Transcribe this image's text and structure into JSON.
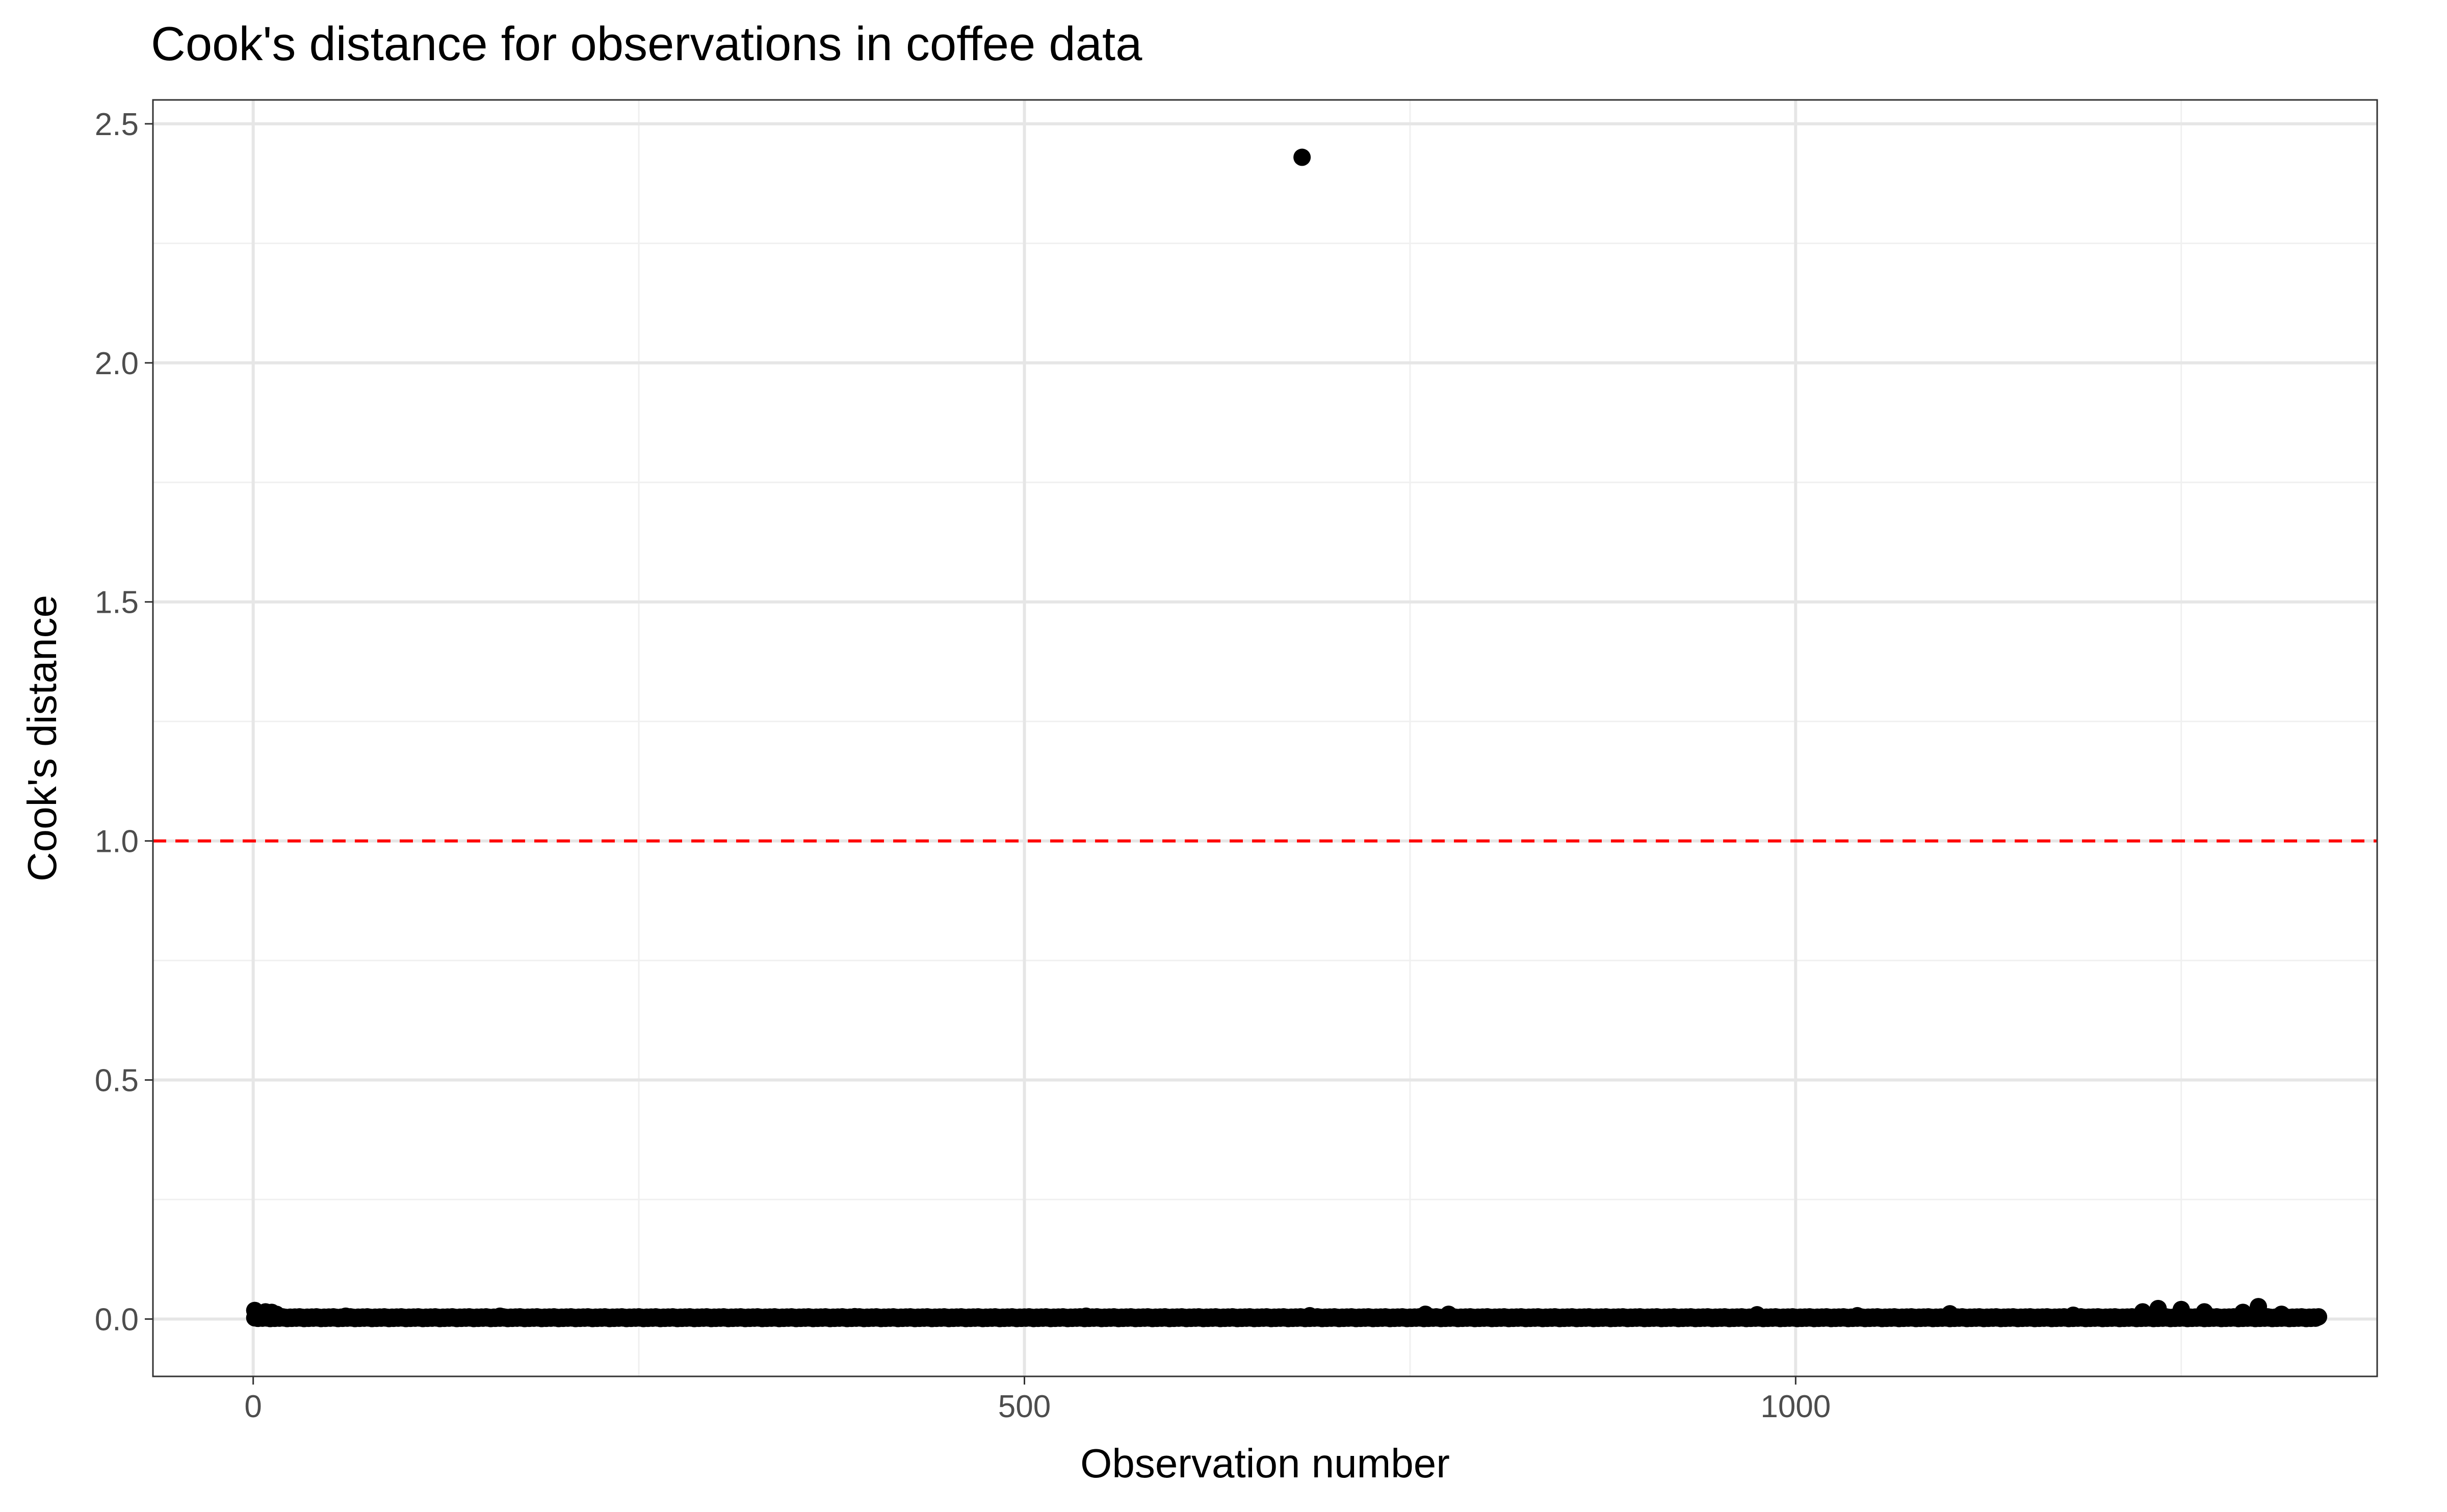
{
  "chart_data": {
    "type": "scatter",
    "title": "Cook's distance for observations in coffee data",
    "xlabel": "Observation number",
    "ylabel": "Cook's distance",
    "xlim": [
      -65,
      1377
    ],
    "ylim": [
      -0.12,
      2.55
    ],
    "x_ticks": [
      0,
      500,
      1000
    ],
    "x_tick_labels": [
      "0",
      "500",
      "1000"
    ],
    "y_ticks": [
      0.0,
      0.5,
      1.0,
      1.5,
      2.0,
      2.5
    ],
    "y_tick_labels": [
      "0.0",
      "0.5",
      "1.0",
      "1.5",
      "2.0",
      "2.5"
    ],
    "x_minor_ticks": [
      250,
      750,
      1250
    ],
    "y_minor_ticks": [
      0.25,
      0.75,
      1.25,
      1.75,
      2.25
    ],
    "grid": true,
    "reference_line": {
      "y": 1.0,
      "style": "dashed",
      "color": "#ff0000"
    },
    "point_color": "#000000",
    "n_observations": 1339,
    "outlier": {
      "x": 680,
      "y": 2.43
    },
    "notable_points": [
      {
        "x": 1,
        "y": 0.018
      },
      {
        "x": 3,
        "y": 0.012
      },
      {
        "x": 8,
        "y": 0.015
      },
      {
        "x": 12,
        "y": 0.014
      },
      {
        "x": 15,
        "y": 0.01
      },
      {
        "x": 60,
        "y": 0.006
      },
      {
        "x": 160,
        "y": 0.006
      },
      {
        "x": 390,
        "y": 0.005
      },
      {
        "x": 540,
        "y": 0.006
      },
      {
        "x": 685,
        "y": 0.007
      },
      {
        "x": 760,
        "y": 0.01
      },
      {
        "x": 775,
        "y": 0.01
      },
      {
        "x": 975,
        "y": 0.009
      },
      {
        "x": 1040,
        "y": 0.007
      },
      {
        "x": 1100,
        "y": 0.011
      },
      {
        "x": 1180,
        "y": 0.008
      },
      {
        "x": 1225,
        "y": 0.015
      },
      {
        "x": 1235,
        "y": 0.022
      },
      {
        "x": 1250,
        "y": 0.02
      },
      {
        "x": 1265,
        "y": 0.015
      },
      {
        "x": 1290,
        "y": 0.014
      },
      {
        "x": 1300,
        "y": 0.026
      },
      {
        "x": 1315,
        "y": 0.01
      }
    ],
    "baseline_value": 0.001
  }
}
